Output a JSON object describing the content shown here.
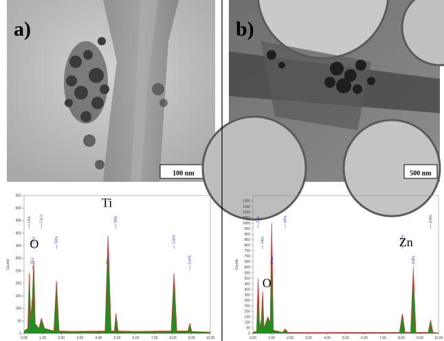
{
  "panels": [
    {
      "label": "a)",
      "scale_bar": "100 nm"
    },
    {
      "label": "b)",
      "scale_bar": "500 nm"
    }
  ],
  "chart_data": [
    {
      "type": "area",
      "y_label": "Counts",
      "annotations": [
        "O",
        "Ti"
      ],
      "peak_labels": [
        "CKa",
        "OKa",
        "TiLa",
        "CuLa",
        "SiKa",
        "TiKa",
        "TiKb",
        "CuKa",
        "CuKb"
      ],
      "xlim": [
        0,
        10
      ],
      "xticks": [
        {
          "value": 0,
          "label": "0.00"
        },
        {
          "value": 1,
          "label": "1.00"
        },
        {
          "value": 2,
          "label": "2.00"
        },
        {
          "value": 3,
          "label": "3.00"
        },
        {
          "value": 4,
          "label": "4.00"
        },
        {
          "value": 5,
          "label": "5.00"
        },
        {
          "value": 6,
          "label": "6.00"
        },
        {
          "value": 7,
          "label": "7.00"
        },
        {
          "value": 8,
          "label": "8.00"
        },
        {
          "value": 9,
          "label": "9.00"
        },
        {
          "value": 10,
          "label": "10.00"
        }
      ],
      "ylim": [
        0,
        550
      ],
      "yticks": [
        0,
        50,
        100,
        150,
        200,
        250,
        300,
        350,
        400,
        450,
        500,
        550
      ],
      "line_color": "#e03030",
      "series": [
        {
          "color": "#1f8f1f",
          "x": [
            0,
            0.2,
            0.28,
            0.36,
            0.45,
            0.52,
            0.6,
            0.8,
            0.93,
            1.1,
            1.6,
            1.74,
            1.88,
            2.5,
            4.35,
            4.51,
            4.67,
            4.85,
            4.93,
            5.05,
            6,
            7.9,
            8.05,
            8.2,
            8.8,
            8.9,
            9.0,
            10
          ],
          "values": [
            10,
            20,
            240,
            60,
            150,
            290,
            40,
            20,
            60,
            20,
            10,
            210,
            10,
            8,
            10,
            390,
            10,
            10,
            80,
            10,
            8,
            10,
            240,
            10,
            10,
            40,
            8,
            5
          ]
        }
      ]
    },
    {
      "type": "area",
      "y_label": "Counts",
      "annotations": [
        "O",
        "Zn"
      ],
      "peak_labels": [
        "CKa",
        "OKa",
        "ZnLa",
        "SiKa",
        "CuKa",
        "ZnKa",
        "ZnKb"
      ],
      "xlim": [
        0,
        10
      ],
      "xticks": [
        {
          "value": 0,
          "label": "0.00"
        },
        {
          "value": 1,
          "label": "1.00"
        },
        {
          "value": 2,
          "label": "2.00"
        },
        {
          "value": 3,
          "label": "3.00"
        },
        {
          "value": 4,
          "label": "4.00"
        },
        {
          "value": 5,
          "label": "5.00"
        },
        {
          "value": 6,
          "label": "6.00"
        },
        {
          "value": 7,
          "label": "7.00"
        },
        {
          "value": 8,
          "label": "8.00"
        },
        {
          "value": 9,
          "label": "9.00"
        },
        {
          "value": 10,
          "label": "10.00"
        }
      ],
      "ylim": [
        0,
        1250
      ],
      "yticks": [
        0,
        50,
        100,
        150,
        200,
        250,
        300,
        350,
        400,
        450,
        500,
        550,
        600,
        650,
        700,
        750,
        800,
        850,
        900,
        950,
        1000,
        1050,
        1100,
        1150,
        1200
      ],
      "line_color": "#e03030",
      "series": [
        {
          "color": "#1f8f1f",
          "x": [
            0,
            0.2,
            0.28,
            0.36,
            0.45,
            0.52,
            0.6,
            0.8,
            0.93,
            1.01,
            1.1,
            1.6,
            1.74,
            1.88,
            3,
            7.9,
            8.05,
            8.2,
            8.5,
            8.64,
            8.78,
            9.45,
            9.57,
            9.7,
            10
          ],
          "values": [
            10,
            20,
            500,
            60,
            120,
            380,
            50,
            150,
            100,
            1000,
            30,
            10,
            40,
            10,
            8,
            10,
            180,
            10,
            10,
            580,
            10,
            10,
            120,
            10,
            5
          ]
        }
      ]
    }
  ]
}
